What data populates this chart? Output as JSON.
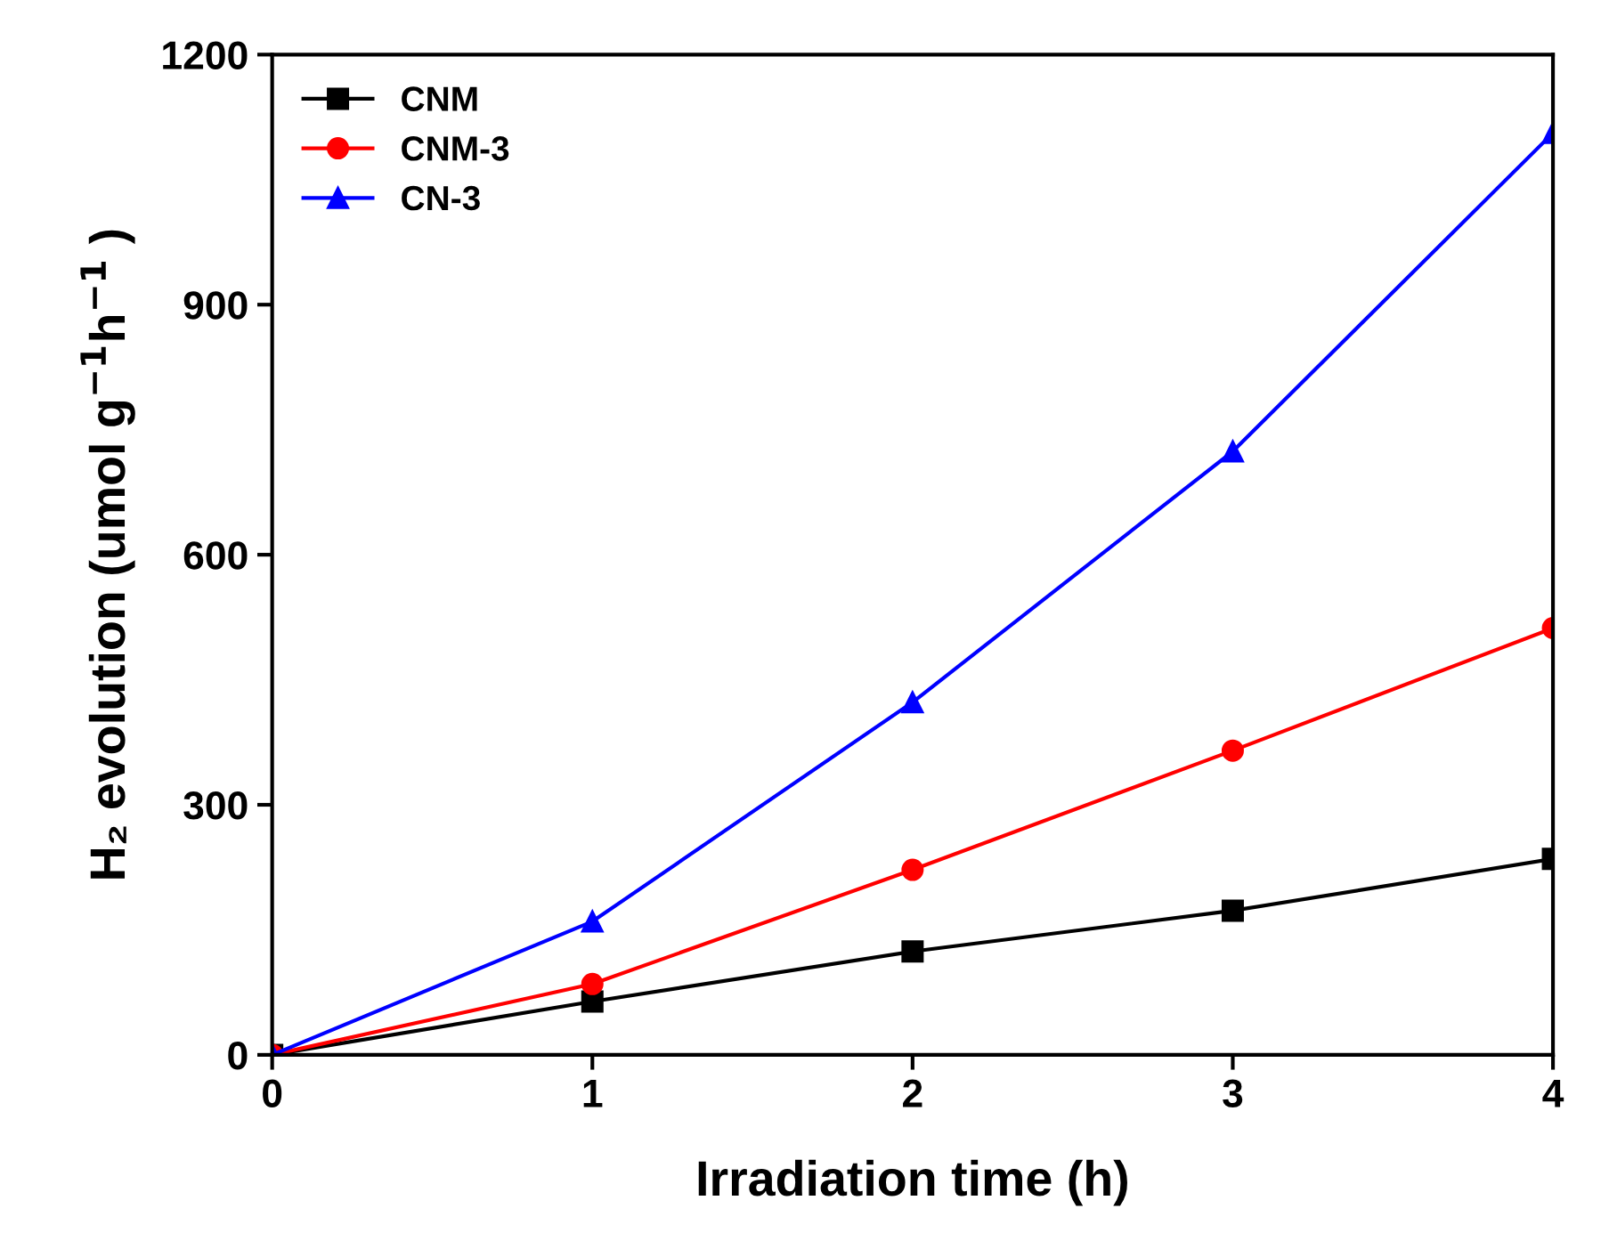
{
  "chart_data": {
    "type": "line",
    "xlabel": "Irradiation time (h)",
    "ylabel": "H₂ evolution (umol g$^{−1}$h$^{−1}$ )",
    "x": [
      0,
      1,
      2,
      3,
      4
    ],
    "series": [
      {
        "name": "CNM",
        "color": "#000000",
        "marker": "square",
        "values": [
          0,
          64,
          124,
          173,
          235
        ]
      },
      {
        "name": "CNM-3",
        "color": "#ff0000",
        "marker": "circle",
        "values": [
          0,
          85,
          222,
          365,
          512
        ]
      },
      {
        "name": "CN-3",
        "color": "#0000ff",
        "marker": "triangle",
        "values": [
          0,
          160,
          423,
          724,
          1106
        ]
      }
    ],
    "xlim": [
      0,
      4
    ],
    "ylim": [
      0,
      1200
    ],
    "xticks": [
      0,
      1,
      2,
      3,
      4
    ],
    "yticks": [
      0,
      300,
      600,
      900,
      1200
    ],
    "grid": false,
    "legend": "top left",
    "line_style": "solid"
  }
}
